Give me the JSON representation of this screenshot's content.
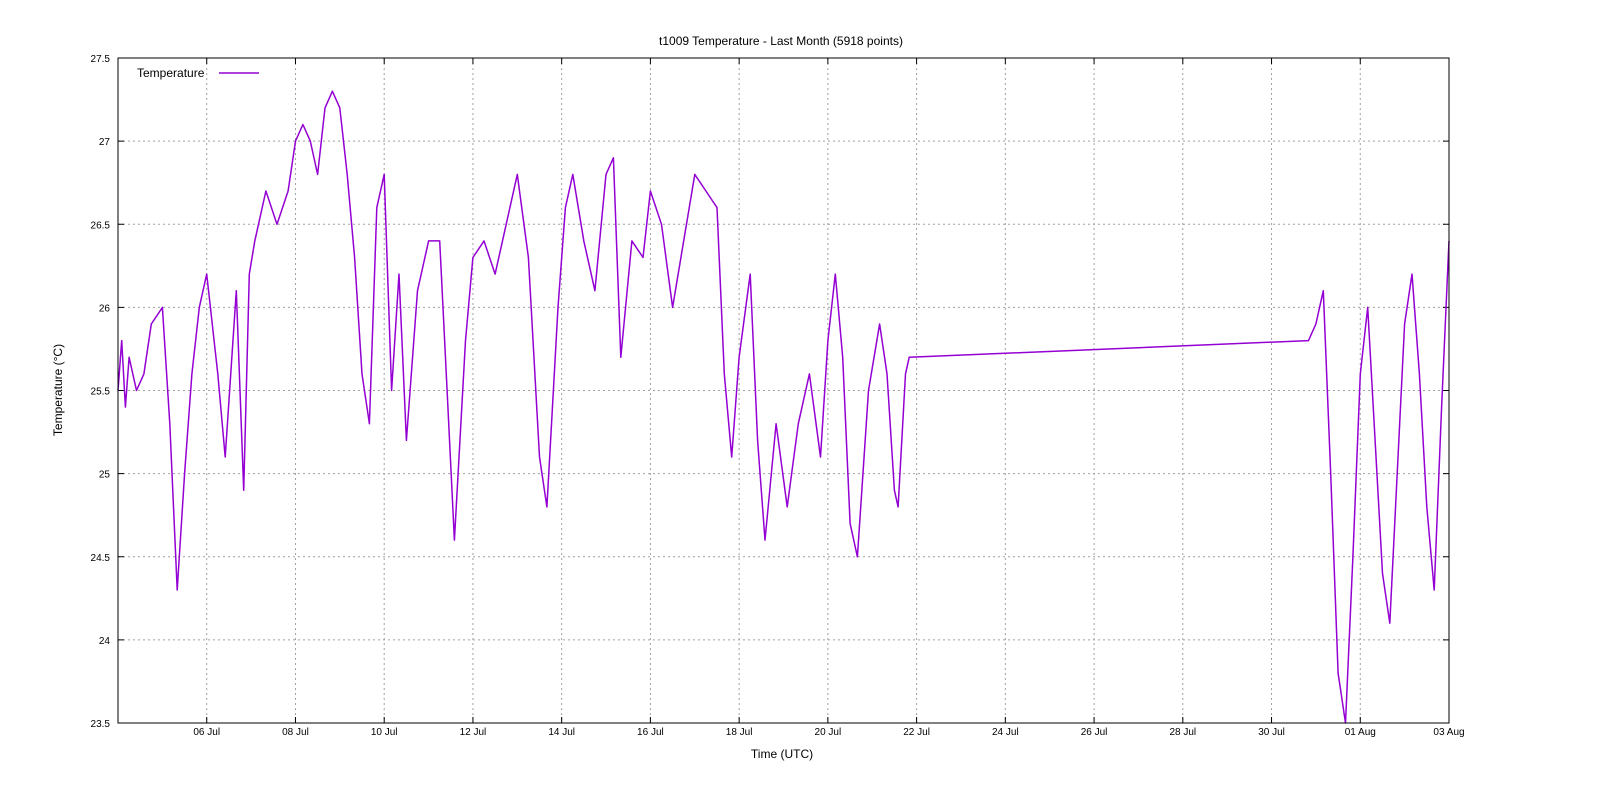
{
  "chart_data": {
    "type": "line",
    "title": "t1009 Temperature - Last Month (5918 points)",
    "xlabel": "Time (UTC)",
    "ylabel": "Temperature (°C)",
    "ylim": [
      23.5,
      27.5
    ],
    "yticks": [
      23.5,
      24,
      24.5,
      25,
      25.5,
      26,
      26.5,
      27,
      27.5
    ],
    "ytick_labels": [
      "23.5",
      "24",
      "24.5",
      "25",
      "25.5",
      "26",
      "26.5",
      "27",
      "27.5"
    ],
    "xlim": [
      "2025-07-04T00:00",
      "2025-08-03T00:00"
    ],
    "xticks": [
      "2025-07-06",
      "2025-07-08",
      "2025-07-10",
      "2025-07-12",
      "2025-07-14",
      "2025-07-16",
      "2025-07-18",
      "2025-07-20",
      "2025-07-22",
      "2025-07-24",
      "2025-07-26",
      "2025-07-28",
      "2025-07-30",
      "2025-08-01",
      "2025-08-03"
    ],
    "xtick_labels": [
      "06 Jul",
      "08 Jul",
      "10 Jul",
      "12 Jul",
      "14 Jul",
      "16 Jul",
      "18 Jul",
      "20 Jul",
      "22 Jul",
      "24 Jul",
      "26 Jul",
      "28 Jul",
      "30 Jul",
      "01 Aug",
      "03 Aug"
    ],
    "grid": true,
    "legend_position": "top-left",
    "series": [
      {
        "name": "Temperature",
        "color": "#9400d3",
        "points": [
          [
            "2025-07-04T00:00",
            25.5
          ],
          [
            "2025-07-04T02:00",
            25.8
          ],
          [
            "2025-07-04T04:00",
            25.4
          ],
          [
            "2025-07-04T06:00",
            25.7
          ],
          [
            "2025-07-04T10:00",
            25.5
          ],
          [
            "2025-07-04T14:00",
            25.6
          ],
          [
            "2025-07-04T18:00",
            25.9
          ],
          [
            "2025-07-05T00:00",
            26.0
          ],
          [
            "2025-07-05T04:00",
            25.3
          ],
          [
            "2025-07-05T08:00",
            24.3
          ],
          [
            "2025-07-05T12:00",
            25.0
          ],
          [
            "2025-07-05T16:00",
            25.6
          ],
          [
            "2025-07-05T20:00",
            26.0
          ],
          [
            "2025-07-06T00:00",
            26.2
          ],
          [
            "2025-07-06T06:00",
            25.6
          ],
          [
            "2025-07-06T10:00",
            25.1
          ],
          [
            "2025-07-06T16:00",
            26.1
          ],
          [
            "2025-07-06T20:00",
            24.9
          ],
          [
            "2025-07-06T23:00",
            26.2
          ],
          [
            "2025-07-07T02:00",
            26.4
          ],
          [
            "2025-07-07T08:00",
            26.7
          ],
          [
            "2025-07-07T14:00",
            26.5
          ],
          [
            "2025-07-07T20:00",
            26.7
          ],
          [
            "2025-07-08T00:00",
            27.0
          ],
          [
            "2025-07-08T04:00",
            27.1
          ],
          [
            "2025-07-08T08:00",
            27.0
          ],
          [
            "2025-07-08T12:00",
            26.8
          ],
          [
            "2025-07-08T16:00",
            27.2
          ],
          [
            "2025-07-08T20:00",
            27.3
          ],
          [
            "2025-07-09T00:00",
            27.2
          ],
          [
            "2025-07-09T04:00",
            26.8
          ],
          [
            "2025-07-09T08:00",
            26.3
          ],
          [
            "2025-07-09T12:00",
            25.6
          ],
          [
            "2025-07-09T16:00",
            25.3
          ],
          [
            "2025-07-09T20:00",
            26.6
          ],
          [
            "2025-07-10T00:00",
            26.8
          ],
          [
            "2025-07-10T04:00",
            25.5
          ],
          [
            "2025-07-10T08:00",
            26.2
          ],
          [
            "2025-07-10T12:00",
            25.2
          ],
          [
            "2025-07-10T18:00",
            26.1
          ],
          [
            "2025-07-11T00:00",
            26.4
          ],
          [
            "2025-07-11T06:00",
            26.4
          ],
          [
            "2025-07-11T10:00",
            25.5
          ],
          [
            "2025-07-11T14:00",
            24.6
          ],
          [
            "2025-07-11T20:00",
            25.8
          ],
          [
            "2025-07-12T00:00",
            26.3
          ],
          [
            "2025-07-12T06:00",
            26.4
          ],
          [
            "2025-07-12T12:00",
            26.2
          ],
          [
            "2025-07-12T18:00",
            26.5
          ],
          [
            "2025-07-13T00:00",
            26.8
          ],
          [
            "2025-07-13T06:00",
            26.3
          ],
          [
            "2025-07-13T12:00",
            25.1
          ],
          [
            "2025-07-13T16:00",
            24.8
          ],
          [
            "2025-07-13T22:00",
            26.0
          ],
          [
            "2025-07-14T02:00",
            26.6
          ],
          [
            "2025-07-14T06:00",
            26.8
          ],
          [
            "2025-07-14T12:00",
            26.4
          ],
          [
            "2025-07-14T18:00",
            26.1
          ],
          [
            "2025-07-15T00:00",
            26.8
          ],
          [
            "2025-07-15T04:00",
            26.9
          ],
          [
            "2025-07-15T08:00",
            25.7
          ],
          [
            "2025-07-15T14:00",
            26.4
          ],
          [
            "2025-07-15T20:00",
            26.3
          ],
          [
            "2025-07-16T00:00",
            26.7
          ],
          [
            "2025-07-16T06:00",
            26.5
          ],
          [
            "2025-07-16T12:00",
            26.0
          ],
          [
            "2025-07-16T18:00",
            26.4
          ],
          [
            "2025-07-17T00:00",
            26.8
          ],
          [
            "2025-07-17T06:00",
            26.7
          ],
          [
            "2025-07-17T12:00",
            26.6
          ],
          [
            "2025-07-17T16:00",
            25.6
          ],
          [
            "2025-07-17T20:00",
            25.1
          ],
          [
            "2025-07-18T00:00",
            25.7
          ],
          [
            "2025-07-18T06:00",
            26.2
          ],
          [
            "2025-07-18T10:00",
            25.2
          ],
          [
            "2025-07-18T14:00",
            24.6
          ],
          [
            "2025-07-18T20:00",
            25.3
          ],
          [
            "2025-07-19T02:00",
            24.8
          ],
          [
            "2025-07-19T08:00",
            25.3
          ],
          [
            "2025-07-19T14:00",
            25.6
          ],
          [
            "2025-07-19T20:00",
            25.1
          ],
          [
            "2025-07-20T00:00",
            25.8
          ],
          [
            "2025-07-20T04:00",
            26.2
          ],
          [
            "2025-07-20T08:00",
            25.7
          ],
          [
            "2025-07-20T12:00",
            24.7
          ],
          [
            "2025-07-20T16:00",
            24.5
          ],
          [
            "2025-07-20T22:00",
            25.5
          ],
          [
            "2025-07-21T04:00",
            25.9
          ],
          [
            "2025-07-21T08:00",
            25.6
          ],
          [
            "2025-07-21T12:00",
            24.9
          ],
          [
            "2025-07-21T14:00",
            24.8
          ],
          [
            "2025-07-21T18:00",
            25.6
          ],
          [
            "2025-07-21T20:00",
            25.7
          ],
          [
            "2025-07-30T20:00",
            25.8
          ],
          [
            "2025-07-31T00:00",
            25.9
          ],
          [
            "2025-07-31T04:00",
            26.1
          ],
          [
            "2025-07-31T08:00",
            25.0
          ],
          [
            "2025-07-31T12:00",
            23.8
          ],
          [
            "2025-07-31T16:00",
            23.5
          ],
          [
            "2025-07-31T20:00",
            24.5
          ],
          [
            "2025-08-01T00:00",
            25.6
          ],
          [
            "2025-08-01T04:00",
            26.0
          ],
          [
            "2025-08-01T08:00",
            25.2
          ],
          [
            "2025-08-01T12:00",
            24.4
          ],
          [
            "2025-08-01T16:00",
            24.1
          ],
          [
            "2025-08-01T20:00",
            25.0
          ],
          [
            "2025-08-02T00:00",
            25.9
          ],
          [
            "2025-08-02T04:00",
            26.2
          ],
          [
            "2025-08-02T08:00",
            25.6
          ],
          [
            "2025-08-02T12:00",
            24.8
          ],
          [
            "2025-08-02T16:00",
            24.3
          ],
          [
            "2025-08-02T20:00",
            25.4
          ],
          [
            "2025-08-03T00:00",
            26.4
          ]
        ]
      }
    ]
  }
}
